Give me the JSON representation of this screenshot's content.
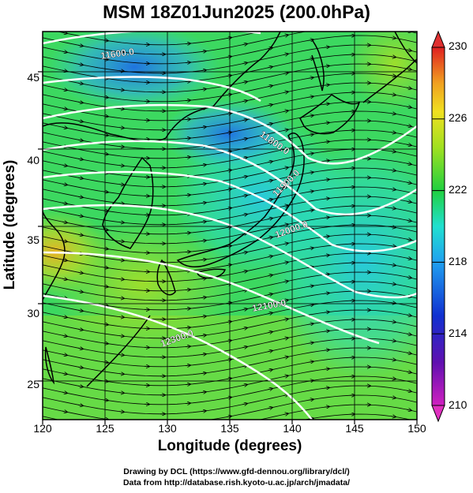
{
  "title": "MSM 18Z01Jun2025 (200.0hPa)",
  "x_axis": {
    "label": "Longitude (degrees)",
    "min": 120,
    "max": 150,
    "ticks": [
      "120",
      "125",
      "130",
      "135",
      "140",
      "145",
      "150"
    ]
  },
  "y_axis": {
    "label": "Latitude  (degrees)",
    "min": 22.5,
    "max": 47.6,
    "ticks": [
      "25",
      "30",
      "35",
      "40",
      "45"
    ]
  },
  "colorbar": {
    "min": 210,
    "max": 230,
    "ticks": [
      "210",
      "214",
      "218",
      "222",
      "226",
      "230"
    ]
  },
  "contours": [
    {
      "label": "11600.0"
    },
    {
      "label": "11800.0"
    },
    {
      "label": "11900.0"
    },
    {
      "label": "12000.0"
    },
    {
      "label": "12100.0"
    },
    {
      "label": "12300.0"
    }
  ],
  "credits": {
    "line1": "Drawing by DCL (https://www.gfd-dennou.org/library/dcl/)",
    "line2": "Data from http://database.rish.kyoto-u.ac.jp/arch/jmadata/"
  }
}
